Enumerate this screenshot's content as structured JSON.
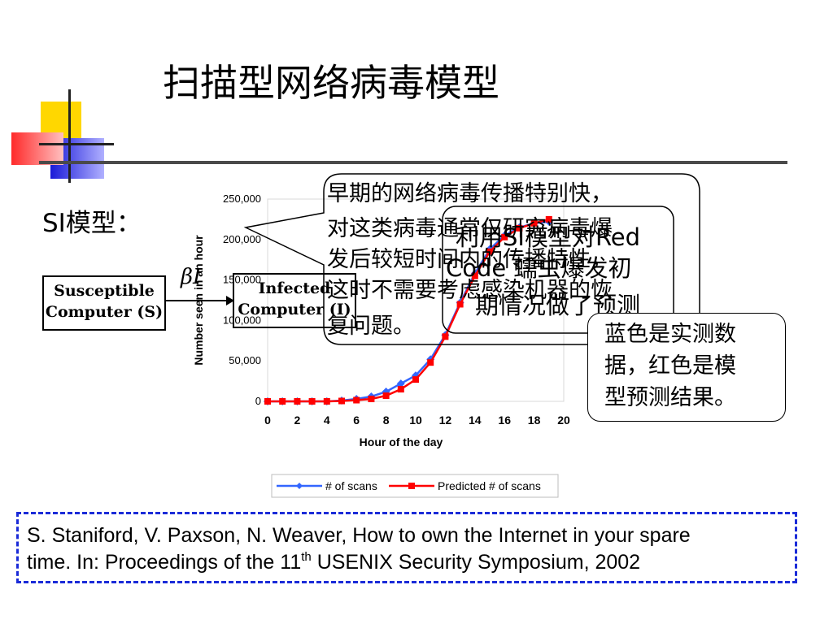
{
  "slide": {
    "title": "扫描型网络病毒模型",
    "si_label": "SI模型：",
    "model": {
      "susceptible_line1": "Susceptible",
      "susceptible_line2": "Computer (S)",
      "infected_line1": "Infected",
      "infected_line2": "Computer (I)",
      "rate_label": "βI"
    },
    "callout_main": {
      "line1": "早期的网络病毒传播特别快，",
      "line2": "对这类病毒通常仅研究病毒爆",
      "line3": "发后较短时间内的传播特性，",
      "line4": "这时不需要考虑感染机器的恢",
      "line5": "复问题。"
    },
    "callout_overlap": {
      "line1": "利用SI模型对Red",
      "line2": "Code 蠕虫爆发初",
      "line3": "期情况做了预测"
    },
    "callout_note": {
      "line1": "蓝色是实测数",
      "line2": "据，红色是模",
      "line3": "型预测结果。"
    },
    "reference": {
      "line1": "S. Staniford, V. Paxson, N. Weaver, How to own the Internet in your spare",
      "line2_pre": "time. In: Proceedings of the 11",
      "line2_sup": "th",
      "line2_post": " USENIX Security Symposium, 2002"
    },
    "colors": {
      "measured": "#3366ff",
      "predicted": "#ff0000",
      "ref_border": "#1a2bd8"
    }
  },
  "chart_data": {
    "type": "line",
    "xlabel": "Hour of the day",
    "ylabel": "Number seen in an hour",
    "xlim": [
      0,
      20
    ],
    "ylim": [
      0,
      250000
    ],
    "x_ticks": [
      "0",
      "2",
      "4",
      "6",
      "8",
      "10",
      "12",
      "14",
      "16",
      "18",
      "20"
    ],
    "y_ticks": [
      "0",
      "50,000",
      "100,000",
      "150,000",
      "200,000",
      "250,000"
    ],
    "legend_position": "bottom",
    "grid": false,
    "series": [
      {
        "name": "# of scans",
        "color": "#3366ff",
        "x": [
          0,
          1,
          2,
          3,
          4,
          5,
          6,
          7,
          8,
          9,
          10,
          11,
          12,
          13,
          14,
          15,
          16,
          17,
          18,
          19
        ],
        "y": [
          0,
          0,
          0,
          0,
          0,
          1000,
          3000,
          6000,
          12000,
          22000,
          32000,
          52000,
          82000,
          122000,
          158000,
          188000,
          205000,
          215000,
          220000,
          222000
        ]
      },
      {
        "name": "Predicted # of scans",
        "color": "#ff0000",
        "x": [
          0,
          1,
          2,
          3,
          4,
          5,
          6,
          7,
          8,
          9,
          10,
          11,
          12,
          13,
          14,
          15,
          16,
          17,
          18,
          19
        ],
        "y": [
          0,
          0,
          0,
          0,
          0,
          500,
          1500,
          3000,
          7000,
          15000,
          27000,
          48000,
          80000,
          120000,
          155000,
          185000,
          203000,
          214000,
          220000,
          225000
        ]
      }
    ]
  }
}
